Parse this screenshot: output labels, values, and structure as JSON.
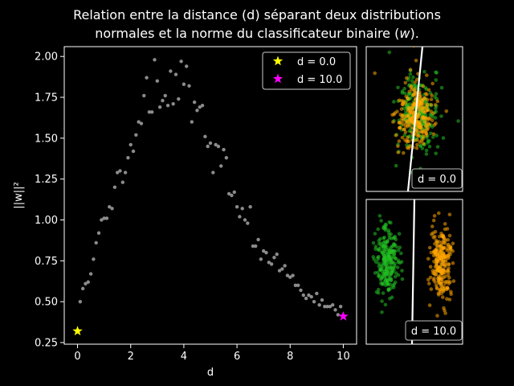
{
  "chart_data": [
    {
      "type": "scatter",
      "title_line1": "Relation entre la distance (d) séparant deux distributions",
      "title_line2_prefix": "normales et la norme du classificateur binaire (",
      "title_line2_var": "w",
      "title_line2_suffix": ").",
      "xlabel": "d",
      "ylabel": "||w||²",
      "xlim": [
        -0.5,
        10.5
      ],
      "ylim": [
        0.24,
        2.06
      ],
      "xticks": [
        0,
        2,
        4,
        6,
        8,
        10
      ],
      "xtick_labels": [
        "0",
        "2",
        "4",
        "6",
        "8",
        "10"
      ],
      "yticks": [
        0.25,
        0.5,
        0.75,
        1.0,
        1.25,
        1.5,
        1.75,
        2.0
      ],
      "ytick_labels": [
        "0.25",
        "0.50",
        "0.75",
        "1.00",
        "1.25",
        "1.50",
        "1.75",
        "2.00"
      ],
      "grid": false,
      "legend_position": "top-right",
      "series": [
        {
          "name": "",
          "color": "#9a9a9a",
          "marker": "dot",
          "points": [
            [
              0.1,
              0.5
            ],
            [
              0.2,
              0.58
            ],
            [
              0.3,
              0.61
            ],
            [
              0.4,
              0.62
            ],
            [
              0.5,
              0.67
            ],
            [
              0.6,
              0.76
            ],
            [
              0.7,
              0.86
            ],
            [
              0.8,
              0.92
            ],
            [
              0.9,
              1.0
            ],
            [
              1.0,
              1.01
            ],
            [
              1.1,
              1.01
            ],
            [
              1.2,
              1.08
            ],
            [
              1.3,
              1.07
            ],
            [
              1.4,
              1.2
            ],
            [
              1.5,
              1.29
            ],
            [
              1.6,
              1.3
            ],
            [
              1.7,
              1.23
            ],
            [
              1.8,
              1.29
            ],
            [
              1.9,
              1.38
            ],
            [
              2.0,
              1.46
            ],
            [
              2.1,
              1.42
            ],
            [
              2.2,
              1.52
            ],
            [
              2.3,
              1.6
            ],
            [
              2.4,
              1.59
            ],
            [
              2.5,
              1.76
            ],
            [
              2.6,
              1.87
            ],
            [
              2.7,
              1.66
            ],
            [
              2.8,
              1.66
            ],
            [
              2.9,
              1.98
            ],
            [
              3.0,
              1.85
            ],
            [
              3.1,
              1.69
            ],
            [
              3.2,
              1.73
            ],
            [
              3.3,
              1.76
            ],
            [
              3.4,
              1.7
            ],
            [
              3.5,
              1.91
            ],
            [
              3.6,
              1.71
            ],
            [
              3.7,
              1.89
            ],
            [
              3.8,
              1.74
            ],
            [
              3.9,
              1.97
            ],
            [
              4.0,
              1.83
            ],
            [
              4.1,
              1.94
            ],
            [
              4.2,
              1.82
            ],
            [
              4.3,
              1.6
            ],
            [
              4.4,
              1.72
            ],
            [
              4.5,
              1.67
            ],
            [
              4.6,
              1.69
            ],
            [
              4.7,
              1.7
            ],
            [
              4.8,
              1.51
            ],
            [
              4.9,
              1.45
            ],
            [
              5.0,
              1.47
            ],
            [
              5.1,
              1.29
            ],
            [
              5.2,
              1.46
            ],
            [
              5.3,
              1.45
            ],
            [
              5.4,
              1.33
            ],
            [
              5.5,
              1.43
            ],
            [
              5.6,
              1.38
            ],
            [
              5.7,
              1.16
            ],
            [
              5.8,
              1.15
            ],
            [
              5.9,
              1.17
            ],
            [
              6.0,
              1.08
            ],
            [
              6.1,
              1.02
            ],
            [
              6.2,
              1.07
            ],
            [
              6.3,
              1.0
            ],
            [
              6.4,
              0.98
            ],
            [
              6.5,
              1.08
            ],
            [
              6.6,
              0.84
            ],
            [
              6.7,
              0.84
            ],
            [
              6.8,
              0.88
            ],
            [
              6.9,
              0.76
            ],
            [
              7.0,
              0.81
            ],
            [
              7.1,
              0.8
            ],
            [
              7.2,
              0.74
            ],
            [
              7.3,
              0.73
            ],
            [
              7.4,
              0.77
            ],
            [
              7.5,
              0.79
            ],
            [
              7.6,
              0.69
            ],
            [
              7.7,
              0.7
            ],
            [
              7.8,
              0.72
            ],
            [
              7.9,
              0.66
            ],
            [
              8.0,
              0.65
            ],
            [
              8.1,
              0.66
            ],
            [
              8.2,
              0.6
            ],
            [
              8.3,
              0.6
            ],
            [
              8.4,
              0.57
            ],
            [
              8.5,
              0.54
            ],
            [
              8.6,
              0.52
            ],
            [
              8.7,
              0.54
            ],
            [
              8.8,
              0.53
            ],
            [
              8.9,
              0.5
            ],
            [
              9.0,
              0.55
            ],
            [
              9.1,
              0.48
            ],
            [
              9.2,
              0.51
            ],
            [
              9.3,
              0.47
            ],
            [
              9.4,
              0.47
            ],
            [
              9.5,
              0.47
            ],
            [
              9.6,
              0.48
            ],
            [
              9.7,
              0.45
            ],
            [
              9.8,
              0.42
            ],
            [
              9.9,
              0.47
            ]
          ]
        },
        {
          "name": "d = 0.0",
          "color": "#ffff00",
          "marker": "star",
          "points": [
            [
              0.0,
              0.32
            ]
          ]
        },
        {
          "name": "d = 10.0",
          "color": "#ff00ff",
          "marker": "star",
          "points": [
            [
              10.0,
              0.41
            ]
          ]
        }
      ]
    },
    {
      "type": "scatter",
      "label": "d = 0.0",
      "class_colors": [
        "#22c022",
        "#ffa500"
      ],
      "description_free": true
    },
    {
      "type": "scatter",
      "label": "d = 10.0",
      "class_colors": [
        "#22c022",
        "#ffa500"
      ],
      "description_free": true
    }
  ]
}
